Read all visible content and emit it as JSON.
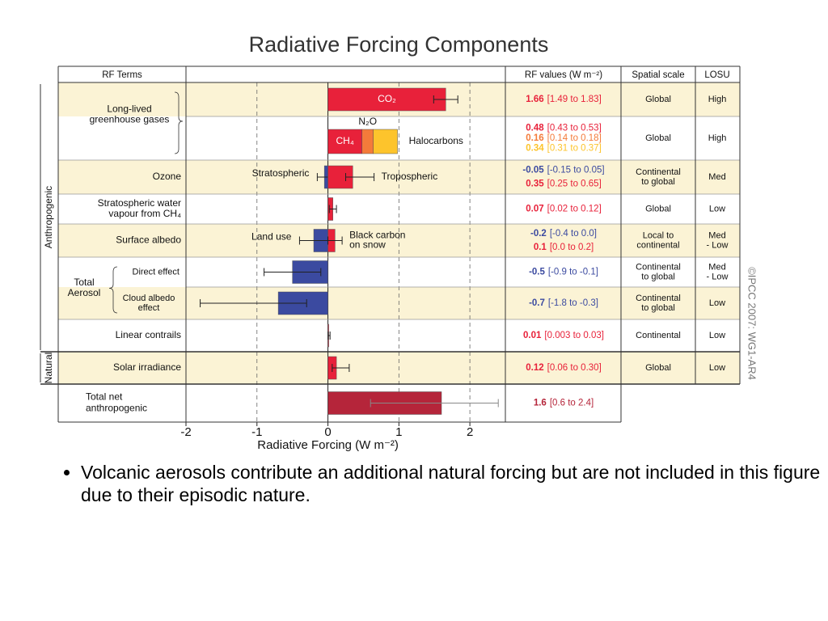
{
  "chart_data": {
    "type": "forcing",
    "title": "Radiative Forcing Components",
    "headers": [
      "RF Terms",
      "RF values (W m⁻²)",
      "Spatial scale",
      "LOSU"
    ],
    "xlabel": "Radiative Forcing (W m⁻²)",
    "xlim": [
      -2,
      2.5
    ],
    "xticks": [
      -2,
      -1,
      0,
      1,
      2
    ],
    "credit": "©IPCC 2007: WG1-AR4",
    "sections": [
      {
        "label": "Anthropogenic",
        "items": [
          {
            "label": [
              "Long-lived",
              "greenhouse gases"
            ],
            "rows": [
              {
                "bars": [
                  {
                    "label": "CO₂",
                    "value": 1.66,
                    "low": 1.49,
                    "high": 1.83,
                    "range_label": "[1.49 to 1.83]",
                    "color": "#e8213a"
                  }
                ],
                "spatial": [
                  "Global"
                ],
                "losu": [
                  "High"
                ]
              },
              {
                "bars": [
                  {
                    "label": "CH₄",
                    "value": 0.48,
                    "range_label": "[0.43 to 0.53]",
                    "color": "#e8213a"
                  },
                  {
                    "label": "N₂O",
                    "value": 0.16,
                    "range_label": "[0.14 to 0.18]",
                    "color": "#f47b3a"
                  },
                  {
                    "label": "Halocarbons",
                    "value": 0.34,
                    "range_label": "[0.31 to 0.37]",
                    "color": "#fdc42c"
                  }
                ],
                "spatial": [
                  "Global"
                ],
                "losu": [
                  "High"
                ]
              }
            ]
          },
          {
            "term": [
              "Ozone"
            ],
            "bars": [
              {
                "label": "Stratospheric",
                "value": -0.05,
                "low": -0.15,
                "high": 0.05,
                "range_label": "[-0.15 to 0.05]",
                "color": "#3b4aa0"
              },
              {
                "label": "Tropospheric",
                "value": 0.35,
                "low": 0.25,
                "high": 0.65,
                "range_label": "[0.25 to 0.65]",
                "color": "#e8213a"
              }
            ],
            "spatial": [
              "Continental",
              "to global"
            ],
            "losu": [
              "Med"
            ]
          },
          {
            "term": [
              "Stratospheric water",
              "vapour from CH₄"
            ],
            "bars": [
              {
                "value": 0.07,
                "low": 0.02,
                "high": 0.12,
                "range_label": "[0.02 to 0.12]",
                "color": "#e8213a"
              }
            ],
            "spatial": [
              "Global"
            ],
            "losu": [
              "Low"
            ]
          },
          {
            "term": [
              "Surface albedo"
            ],
            "bars": [
              {
                "label": "Land use",
                "value": -0.2,
                "low": -0.4,
                "high": 0.0,
                "range_label": "[-0.4 to 0.0]",
                "color": "#3b4aa0"
              },
              {
                "label": [
                  "Black carbon",
                  "on snow"
                ],
                "value": 0.1,
                "low": 0.0,
                "high": 0.2,
                "range_label": "[0.0 to 0.2]",
                "color": "#e8213a"
              }
            ],
            "spatial": [
              "Local to",
              "continental"
            ],
            "losu": [
              "Med",
              "- Low"
            ]
          },
          {
            "label": [
              "Total",
              "Aerosol"
            ],
            "rows": [
              {
                "term": [
                  "Direct effect"
                ],
                "bars": [
                  {
                    "value": -0.5,
                    "low": -0.9,
                    "high": -0.1,
                    "range_label": "[-0.9 to -0.1]",
                    "color": "#3b4aa0"
                  }
                ],
                "spatial": [
                  "Continental",
                  "to global"
                ],
                "losu": [
                  "Med",
                  "- Low"
                ]
              },
              {
                "term": [
                  "Cloud albedo",
                  "effect"
                ],
                "bars": [
                  {
                    "value": -0.7,
                    "low": -1.8,
                    "high": -0.3,
                    "range_label": "[-1.8 to -0.3]",
                    "color": "#3b4aa0"
                  }
                ],
                "spatial": [
                  "Continental",
                  "to global"
                ],
                "losu": [
                  "Low"
                ]
              }
            ]
          },
          {
            "term": [
              "Linear contrails"
            ],
            "bars": [
              {
                "value": 0.01,
                "low": 0.003,
                "high": 0.03,
                "range_label": "[0.003 to 0.03]",
                "color": "#e8213a"
              }
            ],
            "spatial": [
              "Continental"
            ],
            "losu": [
              "Low"
            ]
          }
        ]
      },
      {
        "label": "Natural",
        "items": [
          {
            "term": [
              "Solar irradiance"
            ],
            "bars": [
              {
                "value": 0.12,
                "low": 0.06,
                "high": 0.3,
                "range_label": "[0.06 to 0.30]",
                "color": "#e8213a"
              }
            ],
            "spatial": [
              "Global"
            ],
            "losu": [
              "Low"
            ]
          }
        ]
      }
    ],
    "total": {
      "term": [
        "Total net",
        "anthropogenic"
      ],
      "bars": [
        {
          "value": 1.6,
          "low": 0.6,
          "high": 2.4,
          "range_label": "[0.6 to 2.4]",
          "color": "#b5253a"
        }
      ]
    }
  },
  "note": "Volcanic aerosols contribute an additional natural forcing but are not included in this figure due to their episodic nature."
}
